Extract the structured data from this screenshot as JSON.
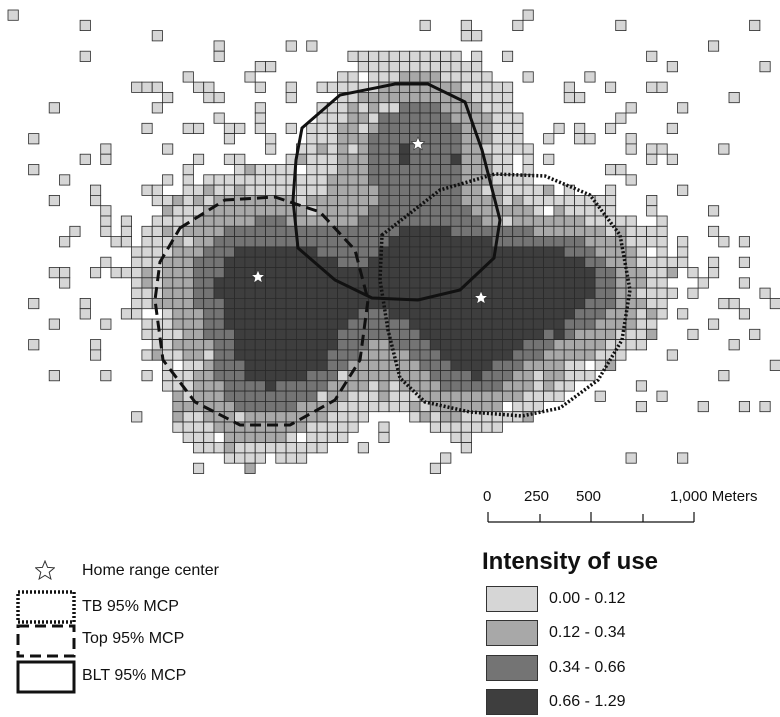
{
  "map": {
    "scale_bar": {
      "labels": [
        "0",
        "250",
        "500",
        "1,000 Meters"
      ]
    },
    "legend": {
      "items": [
        {
          "label": "Home range center",
          "symbol": "star"
        },
        {
          "label": "TB 95% MCP",
          "symbol": "dotted-box"
        },
        {
          "label": "Top 95% MCP",
          "symbol": "dashed-box"
        },
        {
          "label": "BLT 95% MCP",
          "symbol": "solid-box"
        }
      ]
    },
    "intensity": {
      "title": "Intensity of use",
      "classes": [
        {
          "label": "0.00 - 0.12",
          "color": "#d6d6d6"
        },
        {
          "label": "0.12 - 0.34",
          "color": "#a8a8a8"
        },
        {
          "label": "0.34 - 0.66",
          "color": "#747474"
        },
        {
          "label": "0.66 - 1.29",
          "color": "#3e3e3e"
        }
      ]
    }
  }
}
